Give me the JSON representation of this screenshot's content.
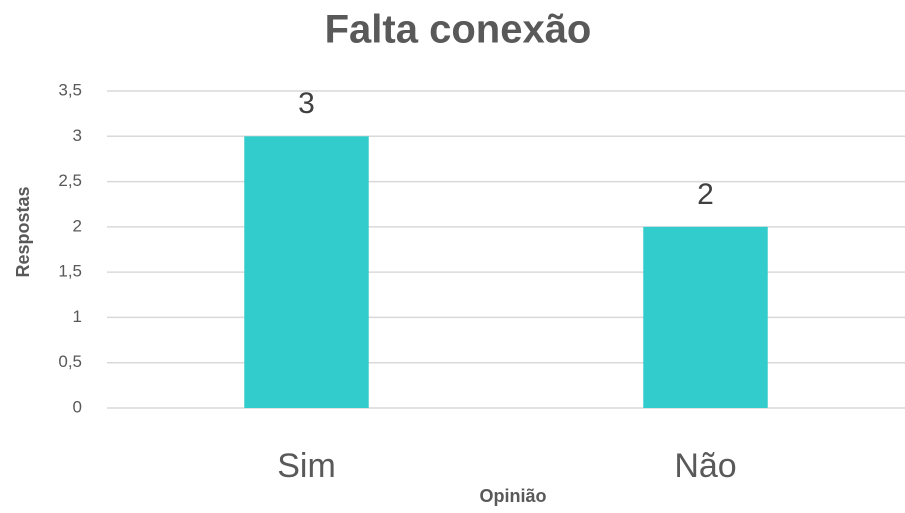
{
  "chart_data": {
    "type": "bar",
    "title": "Falta conexão",
    "x_label": "Opinião",
    "y_label": "Respostas",
    "categories": [
      "Sim",
      "Não"
    ],
    "values": [
      3,
      2
    ],
    "color": "#33cccc",
    "ylim": [
      0,
      3.5
    ],
    "yticks": [
      0,
      {
        "value": 0.5,
        "label": "0,5"
      },
      1,
      {
        "value": 1.5,
        "label": "1,5"
      },
      2,
      {
        "value": 2.5,
        "label": "2,5"
      },
      3,
      {
        "value": 3.5,
        "label": "3,5"
      }
    ],
    "grid": true
  }
}
